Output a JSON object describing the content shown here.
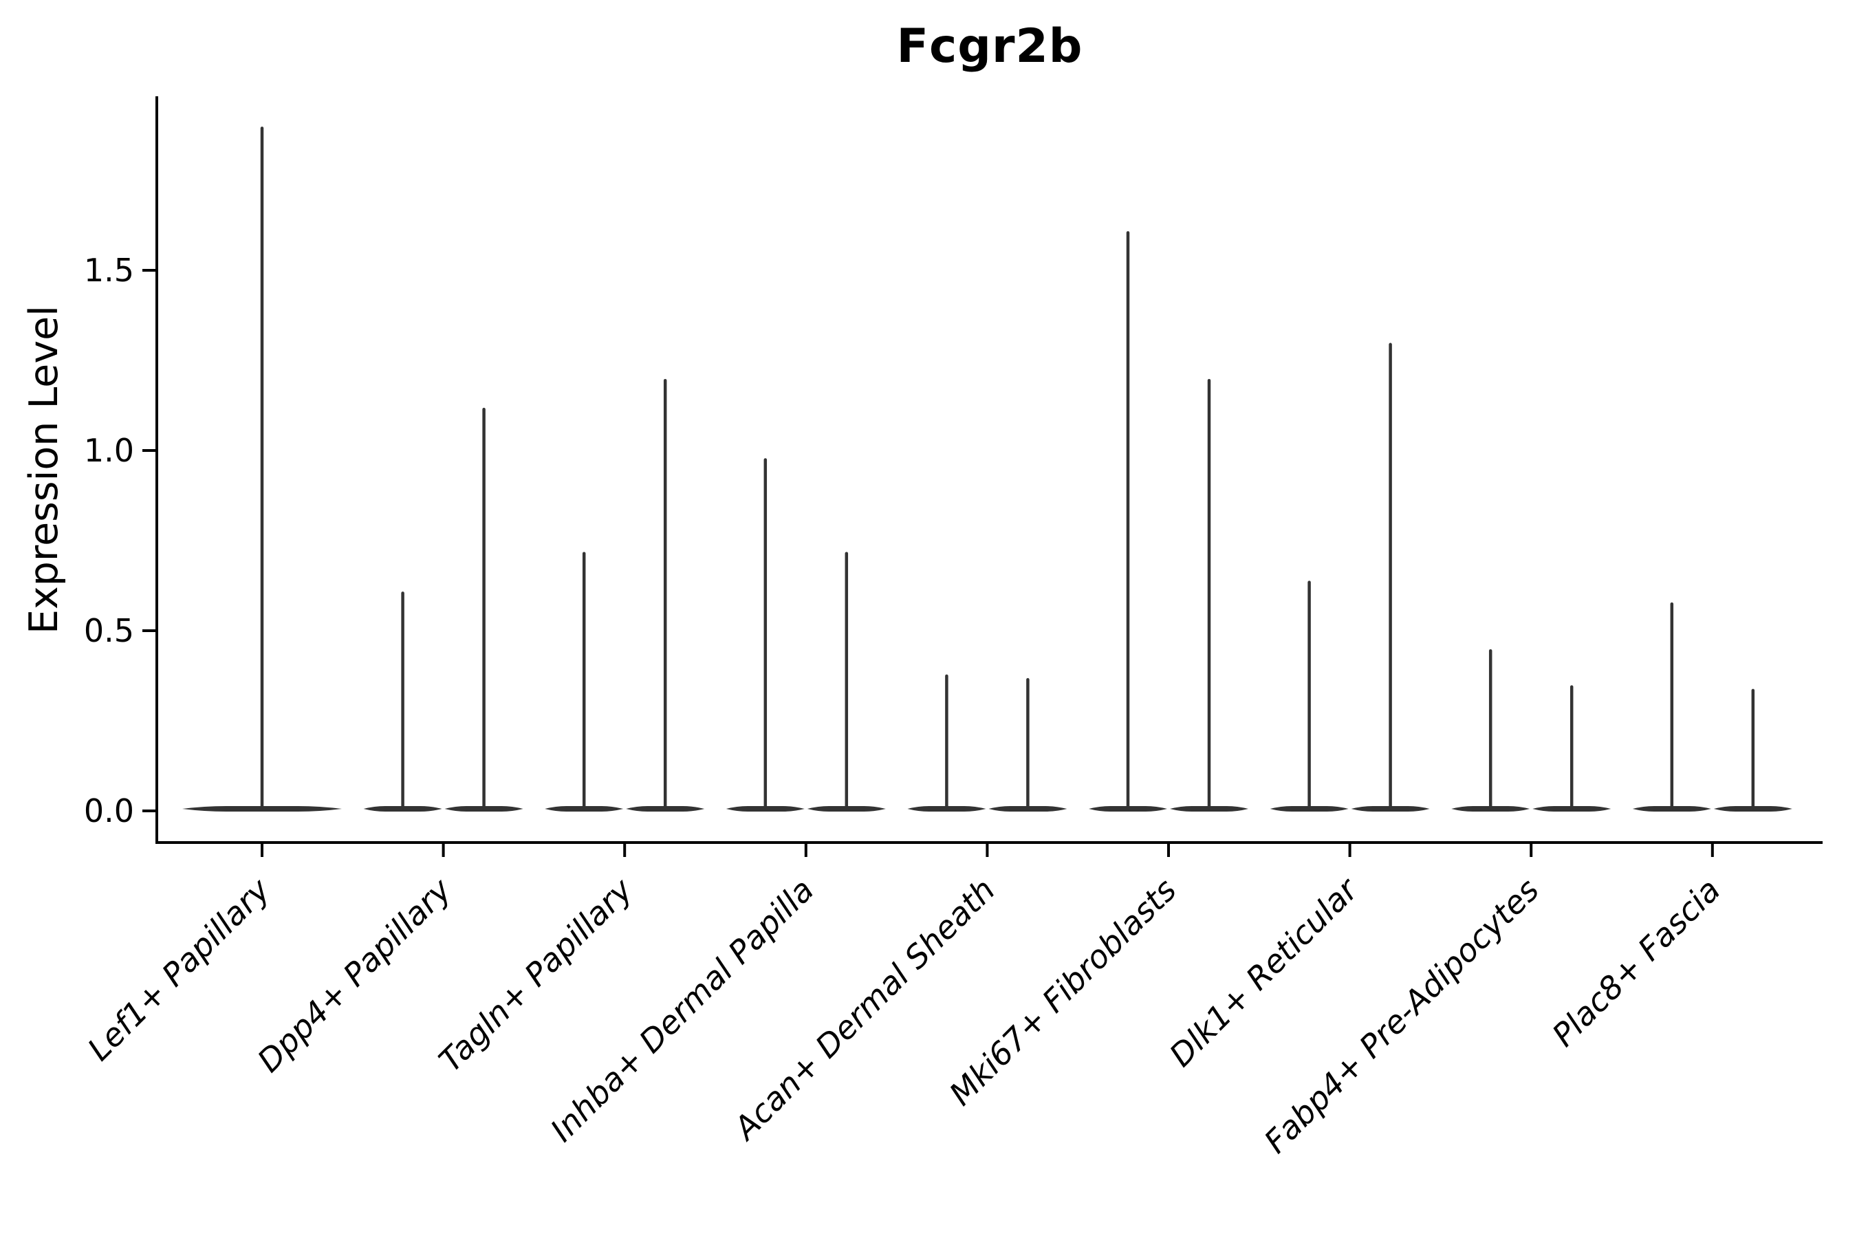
{
  "chart_data": {
    "type": "violin",
    "title": "Fcgr2b",
    "ylabel": "Expression Level",
    "xlabel": "",
    "ylim": [
      0,
      1.98
    ],
    "yticks": [
      0.0,
      0.5,
      1.0,
      1.5
    ],
    "ytick_labels": [
      "0.0",
      "0.5",
      "1.0",
      "1.5"
    ],
    "grid": false,
    "legend": "none",
    "categories": [
      "Lef1+ Papillary",
      "Dpp4+ Papillary",
      "Tagln+ Papillary",
      "Inhba+ Dermal Papilla",
      "Acan+ Dermal Sheath",
      "Mki67+ Fibroblasts",
      "Dlk1+ Reticular",
      "Fabp4+ Pre-Adipocytes",
      "Plac8+ Fascia"
    ],
    "violin_min": 0,
    "violin_max_per_category": [
      [
        1.9
      ],
      [
        0.61,
        1.12
      ],
      [
        0.72,
        1.2
      ],
      [
        0.98,
        0.72
      ],
      [
        0.38,
        0.37
      ],
      [
        1.61,
        1.2
      ],
      [
        0.64,
        1.3
      ],
      [
        0.45,
        0.35
      ],
      [
        0.58,
        0.34
      ]
    ],
    "distribution_note": "Expression mass concentrated at 0 (wide flat base) with a thin spike rising to the max value; first category has one violin, remaining categories have two violins each",
    "colors": {
      "violin": "#333333",
      "axis": "#000000",
      "text": "#000000"
    }
  }
}
